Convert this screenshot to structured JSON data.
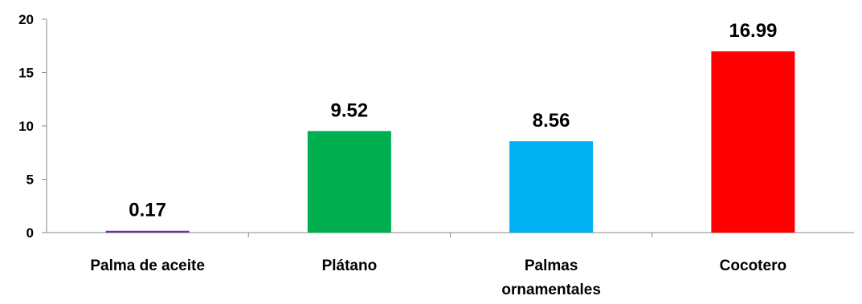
{
  "chart_data": {
    "type": "bar",
    "categories": [
      [
        "Palma de aceite"
      ],
      [
        "Plátano"
      ],
      [
        "Palmas",
        "ornamentales"
      ],
      [
        "Cocotero"
      ]
    ],
    "values": [
      0.17,
      9.52,
      8.56,
      16.99
    ],
    "data_labels": [
      "0.17",
      "9.52",
      "8.56",
      "16.99"
    ],
    "colors": [
      "#7030A0",
      "#00B050",
      "#00B0F0",
      "#FF0000"
    ],
    "ylim": [
      0,
      20
    ],
    "yticks": [
      0,
      5,
      10,
      15,
      20
    ],
    "grid": false,
    "legend": "none",
    "title": "",
    "xlabel": "",
    "ylabel": ""
  }
}
